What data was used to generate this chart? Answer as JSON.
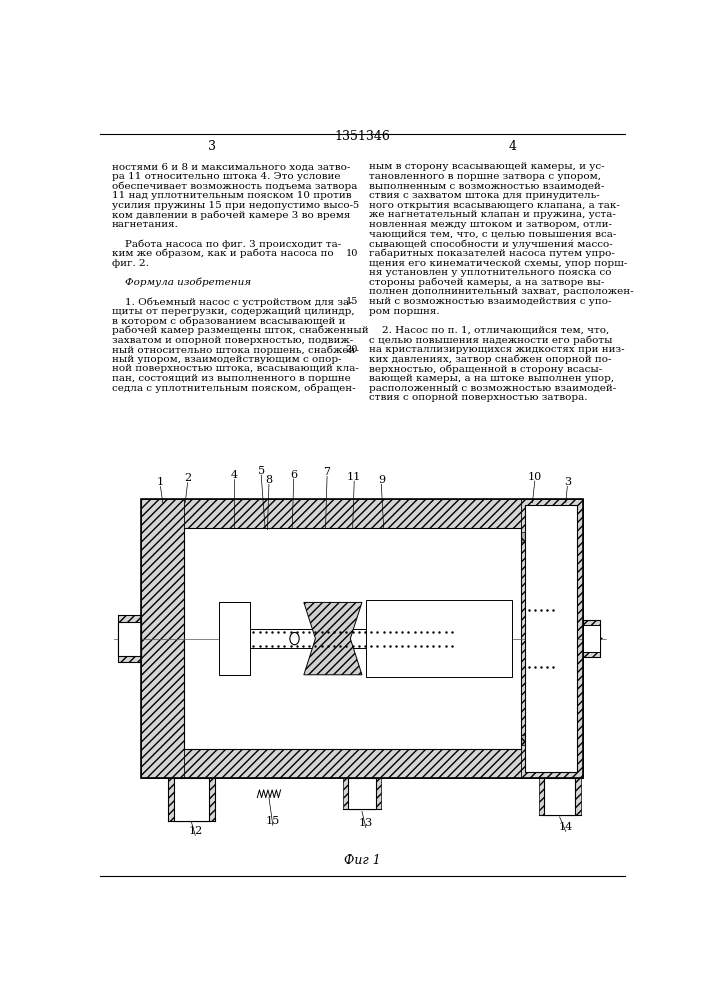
{
  "patent_number": "1351346",
  "page_left": "3",
  "page_right": "4",
  "background_color": "#ffffff",
  "left_col_lines": [
    "ностями 6 и 8 и максимального хода затво-",
    "ра 11 относительно штока 4. Это условие",
    "обеспечивает возможность подъема затвора",
    "11 над уплотнительным пояском 10 против",
    "усилия пружины 15 при недопустимо высо-",
    "ком давлении в рабочей камере 3 во время",
    "нагнетания.",
    "",
    "    Работа насоса по фиг. 3 происходит та-",
    "ким же образом, как и работа насоса по",
    "фиг. 2.",
    "",
    "    Формула изобретения",
    "",
    "    1. Объемный насос с устройством для за-",
    "щиты от перегрузки, содержащий цилиндр,",
    "в котором с образованием всасывающей и",
    "рабочей камер размещены шток, снабженный",
    "захватом и опорной поверхностью, подвиж-",
    "ный относительно штока поршень, снабжен-",
    "ный упором, взаимодействующим с опор-",
    "ной поверхностью штока, всасывающий кла-",
    "пан, состоящий из выполненного в поршне",
    "седла с уплотнительным пояском, обращен-"
  ],
  "right_col_lines": [
    "ным в сторону всасывающей камеры, и ус-",
    "тановленного в поршне затвора с упором,",
    "выполненным с возможностью взаимодей-",
    "ствия с захватом штока для принудитель-",
    "ного открытия всасывающего клапана, а так-",
    "же нагнетательный клапан и пружина, уста-",
    "новленная между штоком и затвором, отли-",
    "чающийся тем, что, с целью повышения вса-",
    "сывающей способности и улучшения́ массо-",
    "габаритных показателей насоса путем упро-",
    "щения его кинематической схемы, упор порш-",
    "ня установлен у уплотнительного пояска со",
    "стороны рабочей камеры, а на затворе вы-",
    "полнен дополнинительный захват, расположен-",
    "ный с возможностью взаимодействия с упо-",
    "ром поршня.",
    "",
    "    2. Насос по п. 1, отличающийся тем, что,",
    "с целью повышения надежности его работы",
    "на кристаллизирующихся жидкостях при низ-",
    "ких давлениях, затвор снабжен опорной по-",
    "верхностью, обращенной в сторону всасы-",
    "вающей камеры, а на штоке выполнен упор,",
    "расположенный с возможностью взаимодей-",
    "ствия с опорной поверхностью затвора."
  ],
  "fig_caption": "Фиг 1"
}
